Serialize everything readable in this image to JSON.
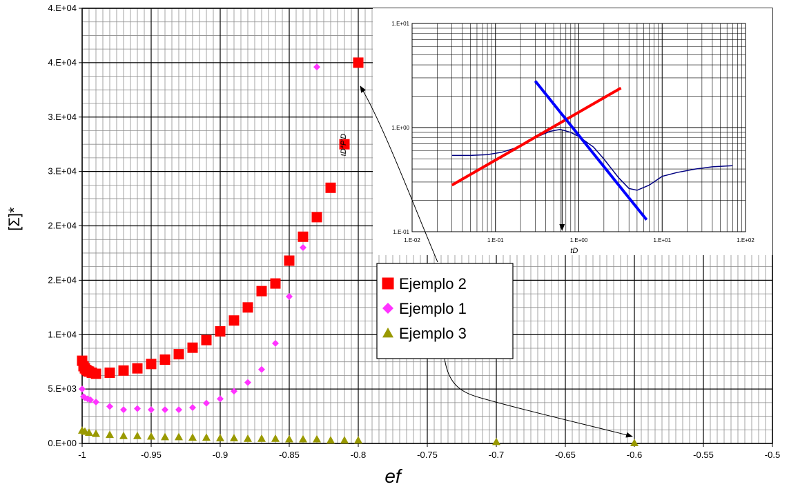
{
  "chart_data": [
    {
      "type": "scatter",
      "role": "main",
      "xlabel": "ef",
      "ylabel": "[Σ]*",
      "xlim": [
        -1,
        -0.5
      ],
      "ylim": [
        0,
        40000
      ],
      "x_ticks": [
        -1,
        -0.95,
        -0.9,
        -0.85,
        -0.8,
        -0.75,
        -0.7,
        -0.65,
        -0.6,
        -0.55,
        -0.5
      ],
      "x_tick_labels": [
        "-1",
        "-0.95",
        "-0.9",
        "-0.85",
        "-0.8",
        "-0.75",
        "-0.7",
        "-0.65",
        "-0.6",
        "-0.55",
        "-0.5"
      ],
      "y_ticks": [
        0,
        5000,
        10000,
        15000,
        20000,
        25000,
        30000,
        35000,
        40000
      ],
      "y_tick_labels": [
        "0.E+00",
        "5.E+03",
        "1.E+04",
        "2.E+04",
        "2.E+04",
        "3.E+04",
        "3.E+04",
        "4.E+04",
        "4.E+04"
      ],
      "grid": true,
      "minor_grid": true,
      "legend_placement": "center-right",
      "series": [
        {
          "name": "Ejemplo 2",
          "color": "#ff0000",
          "marker": "square",
          "points": [
            [
              -1.0,
              7600
            ],
            [
              -0.999,
              7100
            ],
            [
              -0.998,
              6900
            ],
            [
              -0.997,
              6750
            ],
            [
              -0.996,
              6650
            ],
            [
              -0.995,
              6600
            ],
            [
              -0.993,
              6500
            ],
            [
              -0.99,
              6400
            ],
            [
              -0.98,
              6500
            ],
            [
              -0.97,
              6700
            ],
            [
              -0.96,
              6900
            ],
            [
              -0.95,
              7300
            ],
            [
              -0.94,
              7700
            ],
            [
              -0.93,
              8200
            ],
            [
              -0.92,
              8800
            ],
            [
              -0.91,
              9500
            ],
            [
              -0.9,
              10300
            ],
            [
              -0.89,
              11300
            ],
            [
              -0.88,
              12500
            ],
            [
              -0.87,
              14000
            ],
            [
              -0.86,
              14700
            ],
            [
              -0.85,
              16800
            ],
            [
              -0.84,
              19000
            ],
            [
              -0.83,
              20800
            ],
            [
              -0.82,
              23500
            ],
            [
              -0.81,
              27500
            ],
            [
              -0.8,
              35000
            ]
          ]
        },
        {
          "name": "Ejemplo 1",
          "color": "#ff33ff",
          "marker": "diamond",
          "points": [
            [
              -1.0,
              5000
            ],
            [
              -0.999,
              4300
            ],
            [
              -0.998,
              4200
            ],
            [
              -0.996,
              4100
            ],
            [
              -0.994,
              4000
            ],
            [
              -0.99,
              3800
            ],
            [
              -0.98,
              3400
            ],
            [
              -0.97,
              3100
            ],
            [
              -0.96,
              3200
            ],
            [
              -0.95,
              3100
            ],
            [
              -0.94,
              3100
            ],
            [
              -0.93,
              3100
            ],
            [
              -0.92,
              3300
            ],
            [
              -0.91,
              3700
            ],
            [
              -0.9,
              4100
            ],
            [
              -0.89,
              4800
            ],
            [
              -0.88,
              5600
            ],
            [
              -0.87,
              6800
            ],
            [
              -0.86,
              9200
            ],
            [
              -0.85,
              13500
            ],
            [
              -0.84,
              18000
            ],
            [
              -0.83,
              34600
            ]
          ]
        },
        {
          "name": "Ejemplo 3",
          "color": "#999900",
          "marker": "triangle",
          "points": [
            [
              -1.0,
              1200
            ],
            [
              -0.998,
              1100
            ],
            [
              -0.995,
              1000
            ],
            [
              -0.99,
              900
            ],
            [
              -0.98,
              800
            ],
            [
              -0.97,
              700
            ],
            [
              -0.96,
              700
            ],
            [
              -0.95,
              650
            ],
            [
              -0.94,
              600
            ],
            [
              -0.93,
              600
            ],
            [
              -0.92,
              550
            ],
            [
              -0.91,
              550
            ],
            [
              -0.9,
              500
            ],
            [
              -0.89,
              500
            ],
            [
              -0.88,
              450
            ],
            [
              -0.87,
              450
            ],
            [
              -0.86,
              450
            ],
            [
              -0.85,
              400
            ],
            [
              -0.84,
              400
            ],
            [
              -0.83,
              400
            ],
            [
              -0.82,
              300
            ],
            [
              -0.81,
              300
            ],
            [
              -0.8,
              300
            ],
            [
              -0.7,
              150
            ],
            [
              -0.6,
              50
            ]
          ]
        }
      ]
    },
    {
      "type": "line",
      "role": "inset",
      "xlabel": "tD",
      "ylabel": "tD*P'D",
      "xscale": "log",
      "yscale": "log",
      "xlim": [
        0.01,
        100
      ],
      "ylim": [
        0.1,
        10
      ],
      "x_tick_labels": [
        "1.E-02",
        "1.E-01",
        "1.E+00",
        "1.E+01",
        "1.E+02"
      ],
      "y_tick_labels": [
        "1.E-01",
        "1.E+00",
        "1.E+01"
      ],
      "grid": true,
      "series": [
        {
          "color": "#000080",
          "points": [
            [
              0.03,
              0.54
            ],
            [
              0.05,
              0.54
            ],
            [
              0.08,
              0.55
            ],
            [
              0.12,
              0.58
            ],
            [
              0.2,
              0.66
            ],
            [
              0.3,
              0.8
            ],
            [
              0.45,
              0.92
            ],
            [
              0.6,
              0.96
            ],
            [
              0.8,
              0.9
            ],
            [
              1.0,
              0.82
            ],
            [
              1.5,
              0.65
            ],
            [
              2.0,
              0.5
            ],
            [
              3.0,
              0.33
            ],
            [
              4.0,
              0.26
            ],
            [
              5.0,
              0.25
            ],
            [
              7.0,
              0.28
            ],
            [
              10.0,
              0.34
            ],
            [
              15.0,
              0.37
            ],
            [
              25.0,
              0.4
            ],
            [
              40.0,
              0.42
            ],
            [
              70.0,
              0.43
            ]
          ]
        },
        {
          "color": "#ff0000",
          "points": [
            [
              0.03,
              0.28
            ],
            [
              3.2,
              2.4
            ]
          ]
        },
        {
          "color": "#0000ff",
          "points": [
            [
              0.3,
              2.8
            ],
            [
              6.5,
              0.13
            ]
          ]
        }
      ],
      "annotation": {
        "arrow_at_x": 0.63
      }
    }
  ]
}
